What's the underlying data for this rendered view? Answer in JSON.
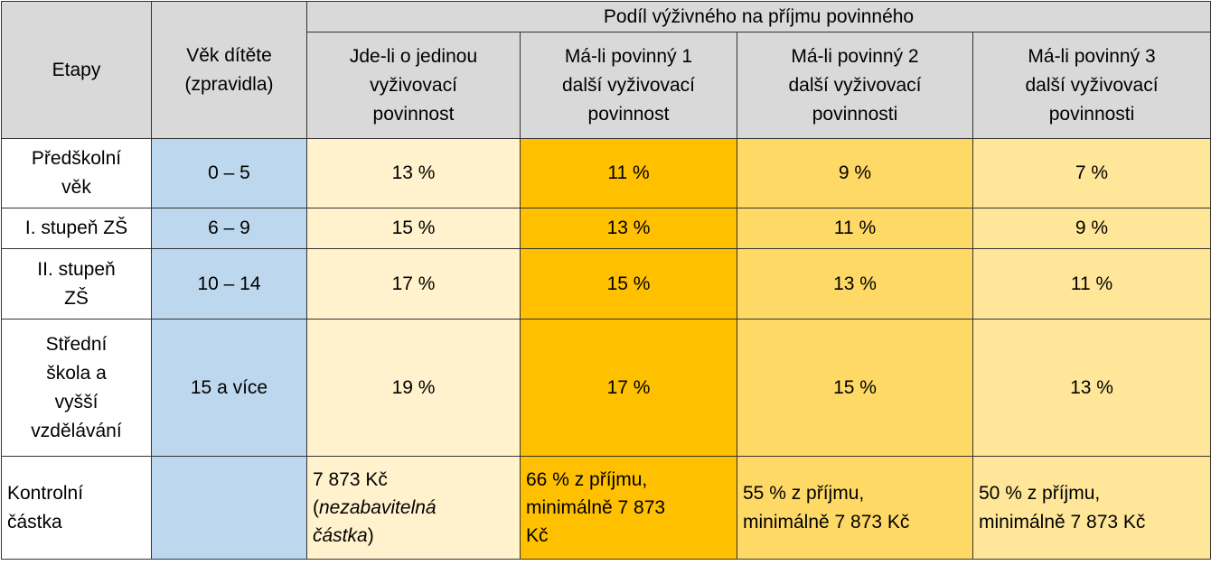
{
  "header": {
    "etapy": "Etapy",
    "age": [
      "Věk dítěte",
      "(zpravidla)"
    ],
    "share": "Podíl výživného na příjmu povinného",
    "cols": [
      [
        "Jde-li o jedinou",
        "vyživovací",
        "povinnost"
      ],
      [
        "Má-li povinný 1",
        "další vyživovací",
        "povinnost"
      ],
      [
        "Má-li povinný 2",
        "další vyživovací",
        "povinnosti"
      ],
      [
        "Má-li povinný 3",
        "další vyživovací",
        "povinnosti"
      ]
    ]
  },
  "rows": [
    {
      "stage": [
        "Předškolní",
        "věk"
      ],
      "age": "0 – 5",
      "values": [
        "13 %",
        "11 %",
        "9 %",
        "7 %"
      ]
    },
    {
      "stage": [
        "I. stupeň ZŠ"
      ],
      "age": "6 – 9",
      "values": [
        "15 %",
        "13 %",
        "11 %",
        "9 %"
      ]
    },
    {
      "stage": [
        "II. stupeň",
        "ZŠ"
      ],
      "age": "10 – 14",
      "values": [
        "17 %",
        "15 %",
        "13 %",
        "11 %"
      ]
    },
    {
      "stage": [
        "Střední",
        "škola a",
        "vyšší",
        "vzdělávání"
      ],
      "age": "15 a více",
      "values": [
        "19 %",
        "17 %",
        "15 %",
        "13 %"
      ]
    }
  ],
  "control": {
    "label": [
      "Kontrolní",
      "částka"
    ],
    "col1": {
      "amount": "7 873 Kč",
      "open": "(",
      "note": "nezabavitelná",
      "note2": "částka",
      "close": ")"
    },
    "col2": [
      "66 % z příjmu,",
      "minimálně 7 873",
      "Kč"
    ],
    "col3": [
      "55 % z příjmu,",
      "minimálně 7 873 Kč"
    ],
    "col4": [
      "50 % z příjmu,",
      "minimálně 7 873 Kč"
    ]
  }
}
